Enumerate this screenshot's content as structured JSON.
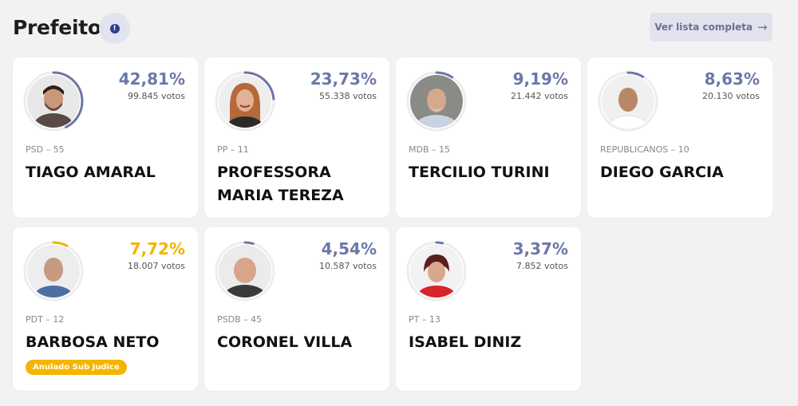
{
  "header": {
    "title": "Prefeito",
    "info_icon": "info-icon",
    "list_button_label": "Ver lista completa",
    "list_button_arrow": "→"
  },
  "colors": {
    "accent": "#6c77a8",
    "highlight": "#f2b400",
    "badge": "#f5b400"
  },
  "candidates": [
    {
      "pct": "42,81%",
      "votes": "99.845 votos",
      "party": "PSD – 55",
      "name": "TIAGO AMARAL",
      "share": 0.4281,
      "color": "#6c77a8"
    },
    {
      "pct": "23,73%",
      "votes": "55.338 votos",
      "party": "PP – 11",
      "name": "PROFESSORA MARIA TEREZA",
      "share": 0.2373,
      "color": "#6c77a8"
    },
    {
      "pct": "9,19%",
      "votes": "21.442 votos",
      "party": "MDB – 15",
      "name": "TERCILIO TURINI",
      "share": 0.0919,
      "color": "#6c77a8"
    },
    {
      "pct": "8,63%",
      "votes": "20.130 votos",
      "party": "REPUBLICANOS – 10",
      "name": "DIEGO GARCIA",
      "share": 0.0863,
      "color": "#6c77a8"
    },
    {
      "pct": "7,72%",
      "votes": "18.007 votos",
      "party": "PDT – 12",
      "name": "BARBOSA NETO",
      "share": 0.0772,
      "color": "#f2b400",
      "badge": "Anulado Sub Judice"
    },
    {
      "pct": "4,54%",
      "votes": "10.587 votos",
      "party": "PSDB – 45",
      "name": "CORONEL VILLA",
      "share": 0.0454,
      "color": "#6c77a8"
    },
    {
      "pct": "3,37%",
      "votes": "7.852 votos",
      "party": "PT – 13",
      "name": "ISABEL DINIZ",
      "share": 0.0337,
      "color": "#6c77a8"
    }
  ]
}
